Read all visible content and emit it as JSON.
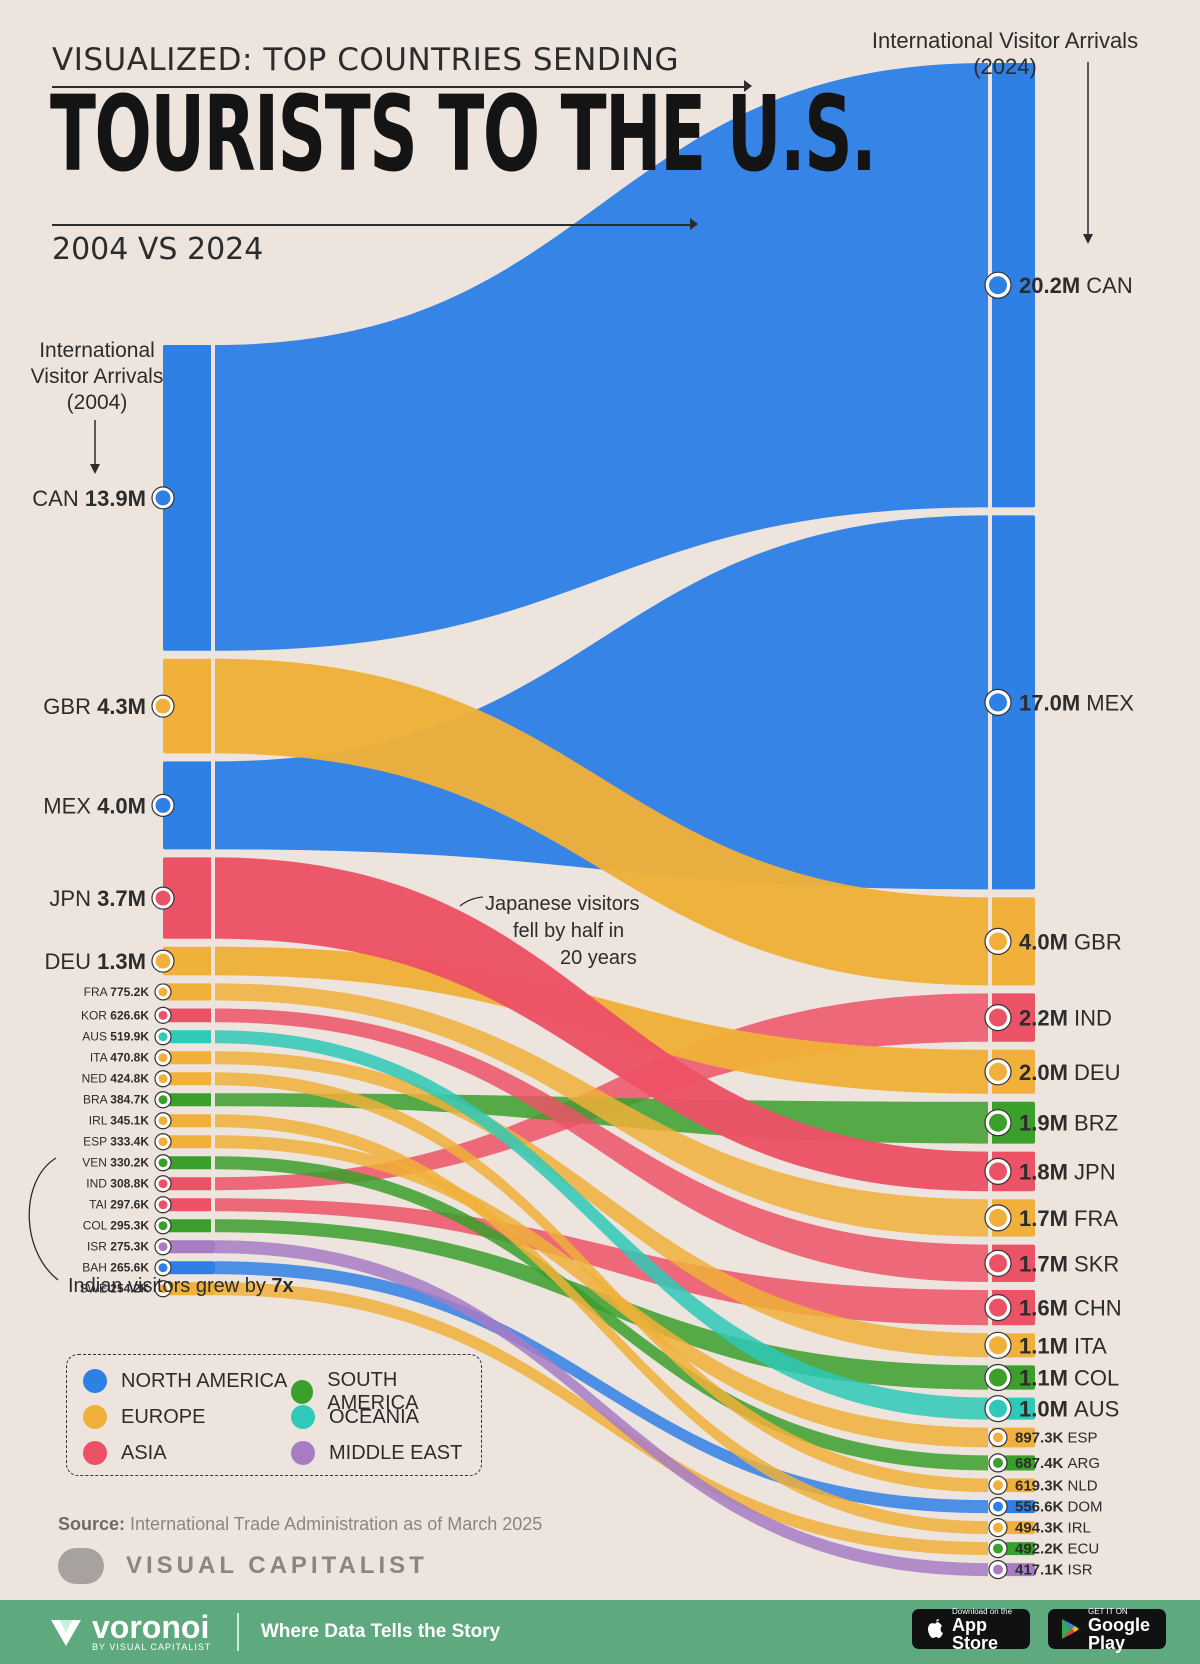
{
  "title": {
    "line1": "VISUALIZED: TOP COUNTRIES SENDING",
    "line2": "TOURISTS TO THE U.S.",
    "subtitle": "2004 VS 2024"
  },
  "colors": {
    "north_america": "#2f80e5",
    "europe": "#f0b03a",
    "asia": "#ec5266",
    "south_america": "#3a9f2b",
    "oceania": "#2ec9b8",
    "middle_east": "#a77cc4"
  },
  "chart_data": {
    "type": "sankey",
    "left_title": "International Visitor Arrivals (2004)",
    "right_title": "International Visitor Arrivals (2024)",
    "left_nodes": [
      {
        "code": "CAN",
        "value_label": "13.9M",
        "value": 13.9,
        "region": "north_america"
      },
      {
        "code": "GBR",
        "value_label": "4.3M",
        "value": 4.3,
        "region": "europe"
      },
      {
        "code": "MEX",
        "value_label": "4.0M",
        "value": 4.0,
        "region": "north_america"
      },
      {
        "code": "JPN",
        "value_label": "3.7M",
        "value": 3.7,
        "region": "asia"
      },
      {
        "code": "DEU",
        "value_label": "1.3M",
        "value": 1.3,
        "region": "europe"
      },
      {
        "code": "FRA",
        "value_label": "775.2K",
        "value": 0.7752,
        "region": "europe"
      },
      {
        "code": "KOR",
        "value_label": "626.6K",
        "value": 0.6266,
        "region": "asia"
      },
      {
        "code": "AUS",
        "value_label": "519.9K",
        "value": 0.5199,
        "region": "oceania"
      },
      {
        "code": "ITA",
        "value_label": "470.8K",
        "value": 0.4708,
        "region": "europe"
      },
      {
        "code": "NED",
        "value_label": "424.8K",
        "value": 0.4248,
        "region": "europe"
      },
      {
        "code": "BRA",
        "value_label": "384.7K",
        "value": 0.3847,
        "region": "south_america"
      },
      {
        "code": "IRL",
        "value_label": "345.1K",
        "value": 0.3451,
        "region": "europe"
      },
      {
        "code": "ESP",
        "value_label": "333.4K",
        "value": 0.3334,
        "region": "europe"
      },
      {
        "code": "VEN",
        "value_label": "330.2K",
        "value": 0.3302,
        "region": "south_america"
      },
      {
        "code": "IND",
        "value_label": "308.8K",
        "value": 0.3088,
        "region": "asia"
      },
      {
        "code": "TAI",
        "value_label": "297.6K",
        "value": 0.2976,
        "region": "asia"
      },
      {
        "code": "COL",
        "value_label": "295.3K",
        "value": 0.2953,
        "region": "south_america"
      },
      {
        "code": "ISR",
        "value_label": "275.3K",
        "value": 0.2753,
        "region": "middle_east"
      },
      {
        "code": "BAH",
        "value_label": "265.6K",
        "value": 0.2656,
        "region": "north_america"
      },
      {
        "code": "SWE",
        "value_label": "254.2K",
        "value": 0.2542,
        "region": "europe"
      }
    ],
    "right_nodes": [
      {
        "code": "CAN",
        "value_label": "20.2M",
        "value": 20.2,
        "region": "north_america"
      },
      {
        "code": "MEX",
        "value_label": "17.0M",
        "value": 17.0,
        "region": "north_america"
      },
      {
        "code": "GBR",
        "value_label": "4.0M",
        "value": 4.0,
        "region": "europe"
      },
      {
        "code": "IND",
        "value_label": "2.2M",
        "value": 2.2,
        "region": "asia"
      },
      {
        "code": "DEU",
        "value_label": "2.0M",
        "value": 2.0,
        "region": "europe"
      },
      {
        "code": "BRZ",
        "value_label": "1.9M",
        "value": 1.9,
        "region": "south_america"
      },
      {
        "code": "JPN",
        "value_label": "1.8M",
        "value": 1.8,
        "region": "asia"
      },
      {
        "code": "FRA",
        "value_label": "1.7M",
        "value": 1.7,
        "region": "europe"
      },
      {
        "code": "SKR",
        "value_label": "1.7M",
        "value": 1.7,
        "region": "asia"
      },
      {
        "code": "CHN",
        "value_label": "1.6M",
        "value": 1.6,
        "region": "asia"
      },
      {
        "code": "ITA",
        "value_label": "1.1M",
        "value": 1.1,
        "region": "europe"
      },
      {
        "code": "COL",
        "value_label": "1.1M",
        "value": 1.1,
        "region": "south_america"
      },
      {
        "code": "AUS",
        "value_label": "1.0M",
        "value": 1.0,
        "region": "oceania"
      },
      {
        "code": "ESP",
        "value_label": "897.3K",
        "value": 0.8973,
        "region": "europe"
      },
      {
        "code": "ARG",
        "value_label": "687.4K",
        "value": 0.6874,
        "region": "south_america"
      },
      {
        "code": "NLD",
        "value_label": "619.3K",
        "value": 0.6193,
        "region": "europe"
      },
      {
        "code": "DOM",
        "value_label": "556.6K",
        "value": 0.5566,
        "region": "north_america"
      },
      {
        "code": "IRL",
        "value_label": "494.3K",
        "value": 0.4943,
        "region": "europe"
      },
      {
        "code": "ECU",
        "value_label": "492.2K",
        "value": 0.4922,
        "region": "south_america"
      },
      {
        "code": "ISR",
        "value_label": "417.1K",
        "value": 0.4171,
        "region": "middle_east"
      }
    ],
    "links": [
      {
        "from": "CAN",
        "to": "CAN"
      },
      {
        "from": "GBR",
        "to": "GBR"
      },
      {
        "from": "MEX",
        "to": "MEX"
      },
      {
        "from": "JPN",
        "to": "JPN"
      },
      {
        "from": "DEU",
        "to": "DEU"
      },
      {
        "from": "FRA",
        "to": "FRA"
      },
      {
        "from": "KOR",
        "to": "SKR"
      },
      {
        "from": "AUS",
        "to": "AUS"
      },
      {
        "from": "ITA",
        "to": "ITA"
      },
      {
        "from": "NED",
        "to": "NLD"
      },
      {
        "from": "BRA",
        "to": "BRZ"
      },
      {
        "from": "IRL",
        "to": "IRL"
      },
      {
        "from": "ESP",
        "to": "ESP"
      },
      {
        "from": "VEN",
        "to": "ARG"
      },
      {
        "from": "IND",
        "to": "IND"
      },
      {
        "from": "TAI",
        "to": "CHN"
      },
      {
        "from": "COL",
        "to": "COL"
      },
      {
        "from": "ISR",
        "to": "ISR"
      },
      {
        "from": "BAH",
        "to": "DOM"
      },
      {
        "from": "SWE",
        "to": "ECU"
      }
    ],
    "annotations": [
      "Japanese visitors fell by half in 20 years",
      "Indian visitors grew by 7x"
    ]
  },
  "annotation_japan": {
    "line1": "Japanese visitors",
    "line2": "fell by half in",
    "line3": "20 years"
  },
  "annotation_india": {
    "text": "Indian visitors grew by ",
    "bold": "7x"
  },
  "legend": {
    "items": [
      {
        "label": "NORTH AMERICA",
        "region": "north_america"
      },
      {
        "label": "SOUTH AMERICA",
        "region": "south_america"
      },
      {
        "label": "EUROPE",
        "region": "europe"
      },
      {
        "label": "OCEANIA",
        "region": "oceania"
      },
      {
        "label": "ASIA",
        "region": "asia"
      },
      {
        "label": "MIDDLE EAST",
        "region": "middle_east"
      }
    ]
  },
  "source": {
    "label": "Source:",
    "text": "International Trade Administration as of March 2025"
  },
  "brand": {
    "name": "VISUAL CAPITALIST"
  },
  "footer": {
    "logo": "voronoi",
    "logo_sub": "BY VISUAL CAPITALIST",
    "tagline": "Where Data Tells the Story",
    "app_store_small": "Download on the",
    "app_store": "App Store",
    "play_small": "GET IT ON",
    "play": "Google Play"
  }
}
